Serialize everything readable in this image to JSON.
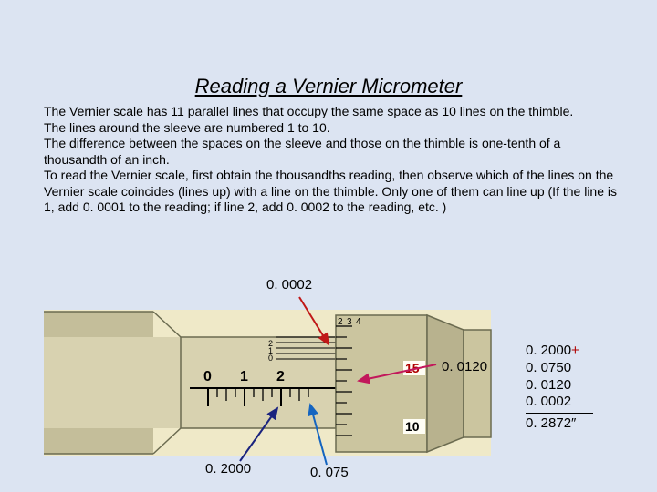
{
  "title": "Reading a Vernier Micrometer",
  "paragraph": "The Vernier scale has 11 parallel lines that occupy the same space as 10 lines on the thimble.\nThe lines around the sleeve are numbered 1 to 10.\nThe difference between the spaces on the sleeve and those on the thimble is one-tenth of a thousandth of an inch.\nTo read the Vernier scale, first obtain the thousandths reading, then observe which of the lines on the Vernier scale coincides (lines up) with a line on the thimble. Only one of them can line up (If the line is 1, add 0. 0001 to the reading; if line 2, add 0. 0002 to the reading, etc. )",
  "annotations": {
    "top": "0. 0002",
    "right": "0. 0120",
    "bottom_left": "0. 2000",
    "bottom_right": "0. 075"
  },
  "calc": {
    "line1": "0. 2000",
    "plus": "+",
    "line2": "0. 0750",
    "line3": "0. 0120",
    "line4": "0. 0002",
    "result": "0. 2872″"
  },
  "sleeve": {
    "numbers": [
      "0",
      "1",
      "2"
    ]
  },
  "thimble": {
    "top_numbers": [
      "2",
      "3",
      "4"
    ],
    "right_top": "15",
    "right_bottom": "10"
  },
  "vernier_labels": [
    "0",
    "1",
    "2"
  ],
  "colors": {
    "top_arrow": "#c01818",
    "right_arrow": "#c2185b",
    "bl_arrow": "#1a237e",
    "br_arrow": "#1565c0",
    "diagram_bg": "#efe9c8",
    "barrel": "#d8d2b0",
    "thimble": "#cbc59f",
    "outline": "#6b6b50",
    "thimble_num": "#b00000"
  }
}
